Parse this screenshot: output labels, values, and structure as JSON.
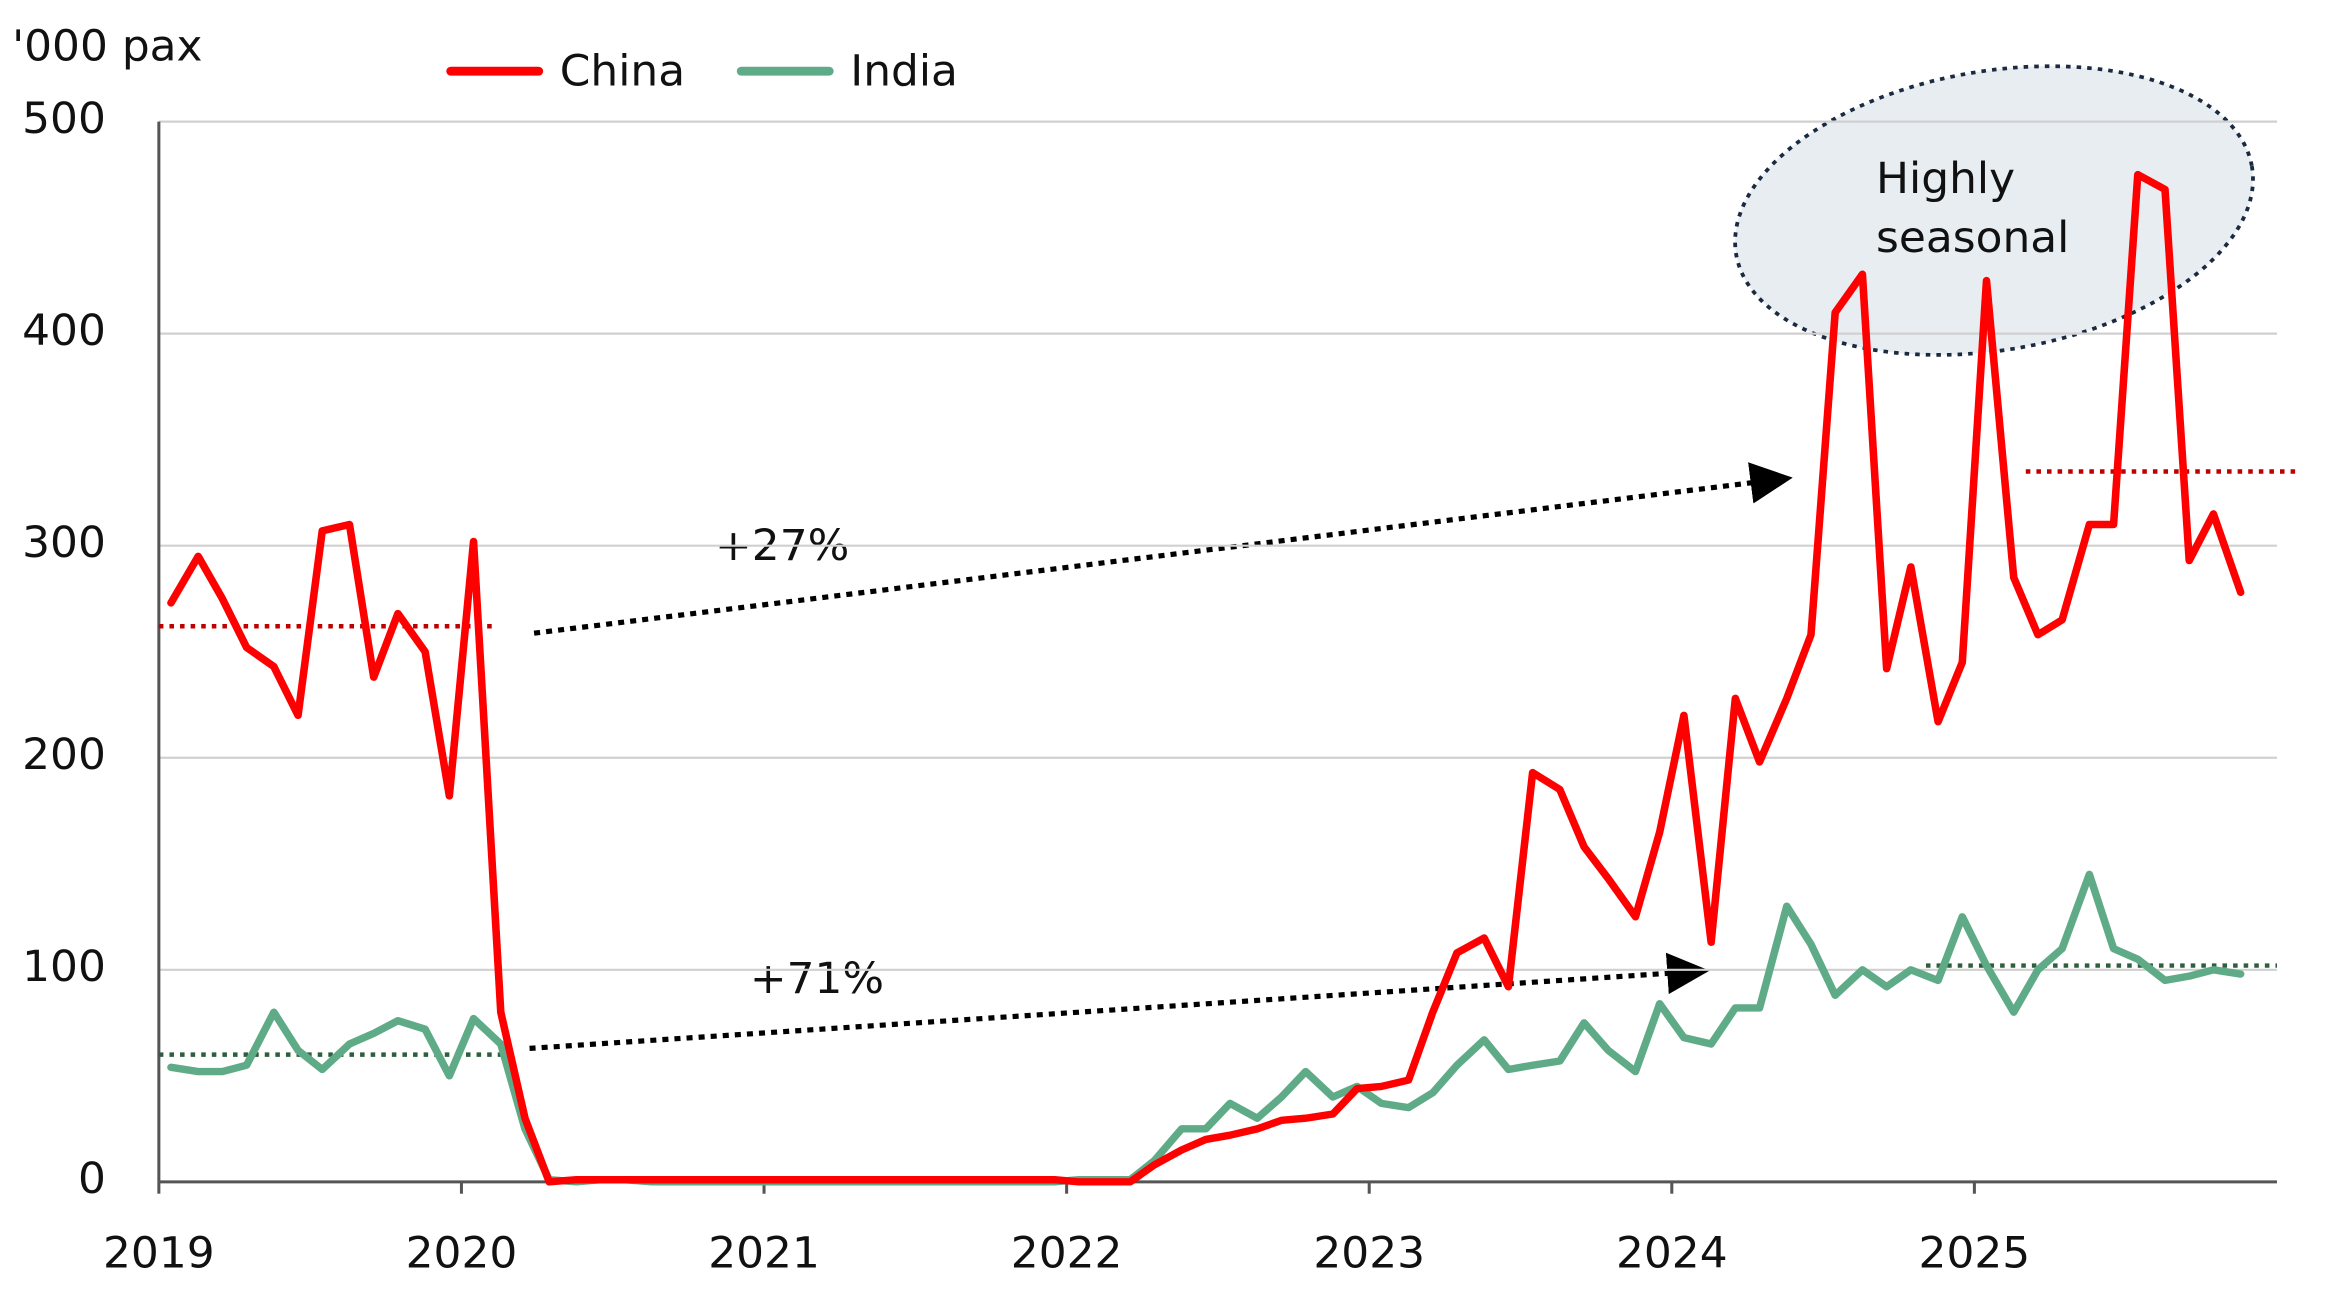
{
  "chart_data": {
    "type": "line",
    "y_axis_label": "'000 pax",
    "x": [
      2019.04,
      2019.13,
      2019.21,
      2019.29,
      2019.38,
      2019.46,
      2019.54,
      2019.63,
      2019.71,
      2019.79,
      2019.88,
      2019.96,
      2020.04,
      2020.13,
      2020.21,
      2020.29,
      2020.38,
      2020.46,
      2020.54,
      2020.63,
      2020.71,
      2020.79,
      2020.88,
      2020.96,
      2021.04,
      2021.13,
      2021.21,
      2021.29,
      2021.38,
      2021.46,
      2021.54,
      2021.63,
      2021.71,
      2021.79,
      2021.88,
      2021.96,
      2022.04,
      2022.13,
      2022.21,
      2022.29,
      2022.38,
      2022.46,
      2022.54,
      2022.63,
      2022.71,
      2022.79,
      2022.88,
      2022.96,
      2023.04,
      2023.13,
      2023.21,
      2023.29,
      2023.38,
      2023.46,
      2023.54,
      2023.63,
      2023.71,
      2023.79,
      2023.88,
      2023.96,
      2024.04,
      2024.13,
      2024.21,
      2024.29,
      2024.38,
      2024.46,
      2024.54,
      2024.63,
      2024.71,
      2024.79,
      2024.88,
      2024.96,
      2025.04,
      2025.13,
      2025.21,
      2025.29,
      2025.38,
      2025.46,
      2025.54,
      2025.63,
      2025.71,
      2025.79,
      2025.88
    ],
    "series": [
      {
        "name": "China",
        "color": "#ff0000",
        "values": [
          273,
          295,
          275,
          252,
          243,
          220,
          307,
          310,
          238,
          268,
          250,
          182,
          302,
          80,
          30,
          0,
          1,
          1,
          1,
          1,
          1,
          1,
          1,
          1,
          1,
          1,
          1,
          1,
          1,
          1,
          1,
          1,
          1,
          1,
          1,
          1,
          0,
          0,
          0,
          8,
          15,
          20,
          22,
          25,
          29,
          30,
          32,
          44,
          45,
          48,
          80,
          108,
          115,
          92,
          193,
          185,
          158,
          143,
          125,
          165,
          220,
          113,
          228,
          198,
          228,
          258,
          410,
          428,
          242,
          290,
          217,
          245,
          425,
          285,
          258,
          265,
          310,
          310,
          475,
          468,
          293,
          315,
          278
        ]
      },
      {
        "name": "India",
        "color": "#5fab88",
        "values": [
          54,
          52,
          52,
          55,
          80,
          62,
          53,
          65,
          70,
          76,
          72,
          50,
          77,
          65,
          25,
          1,
          0,
          1,
          1,
          0,
          0,
          0,
          0,
          0,
          0,
          0,
          0,
          0,
          0,
          0,
          0,
          0,
          0,
          0,
          0,
          0,
          1,
          1,
          1,
          10,
          25,
          25,
          37,
          30,
          40,
          52,
          40,
          45,
          37,
          35,
          42,
          55,
          67,
          53,
          55,
          57,
          75,
          62,
          52,
          84,
          68,
          65,
          82,
          82,
          130,
          112,
          88,
          100,
          92,
          100,
          95,
          125,
          102,
          80,
          100,
          110,
          145,
          110,
          105,
          95,
          97,
          100,
          98
        ]
      }
    ],
    "reference_lines": [
      {
        "value": 262,
        "color": "#c00000"
      },
      {
        "value": 335,
        "color": "#c00000"
      },
      {
        "value": 60,
        "color": "#2e5e3e"
      },
      {
        "value": 102,
        "color": "#2e5e3e"
      }
    ],
    "annotations": [
      "+27%",
      "+71%",
      "Highly seasonal"
    ],
    "xlim": [
      2019,
      2026
    ],
    "xticks": [
      2019,
      2020,
      2021,
      2022,
      2023,
      2024,
      2025
    ],
    "ylim": [
      0,
      500
    ],
    "yticks": [
      0,
      100,
      200,
      300,
      400,
      500
    ],
    "grid": true
  }
}
